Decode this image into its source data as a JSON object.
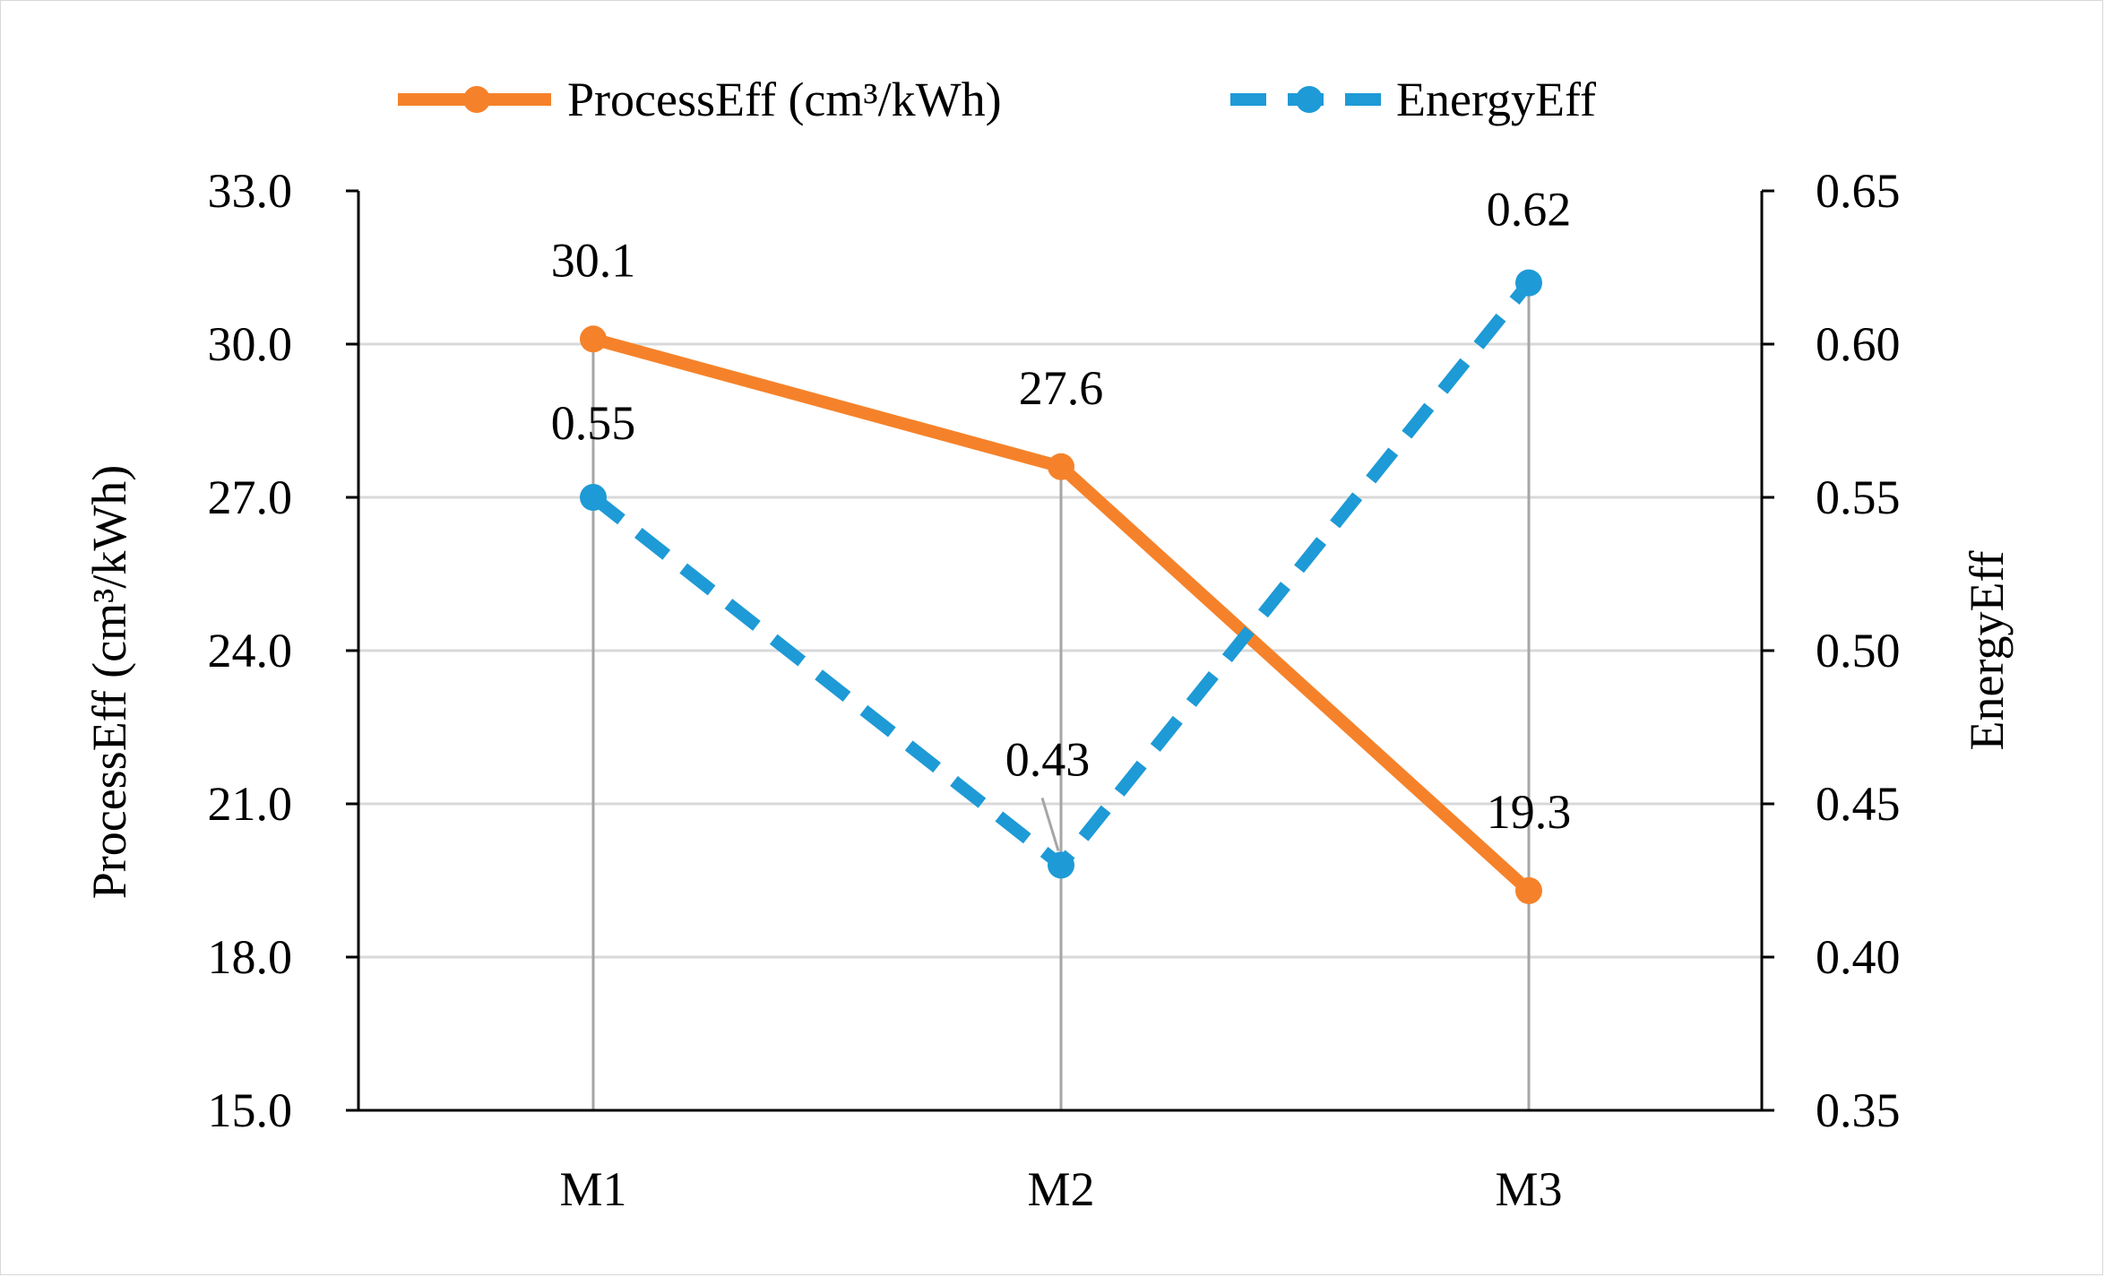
{
  "chart_data": {
    "type": "line",
    "categories": [
      "M1",
      "M2",
      "M3"
    ],
    "series": [
      {
        "name": "ProcessEff (cm³/kWh)",
        "axis": "left",
        "values": [
          30.1,
          27.6,
          19.3
        ],
        "labels": [
          "30.1",
          "27.6",
          "19.3"
        ],
        "color": "#f5822a",
        "style": "solid",
        "marker": "circle"
      },
      {
        "name": "EnergyEff",
        "axis": "right",
        "values": [
          0.55,
          0.43,
          0.62
        ],
        "labels": [
          "0.55",
          "0.43",
          "0.62"
        ],
        "color": "#1e9ad6",
        "style": "dashed",
        "marker": "circle"
      }
    ],
    "ylabel_left": "ProcessEff (cm³/kWh)",
    "ylabel_right": "EnergyEff",
    "ylim_left": [
      15,
      33
    ],
    "ylim_right": [
      0.35,
      0.65
    ],
    "yticks_left": [
      "15.0",
      "18.0",
      "21.0",
      "24.0",
      "27.0",
      "30.0",
      "33.0"
    ],
    "yticks_right": [
      "0.35",
      "0.40",
      "0.45",
      "0.50",
      "0.55",
      "0.60",
      "0.65"
    ],
    "grid": "horizontal",
    "drop_lines": true,
    "legend": "top-center",
    "gridColor": "#d9d9d9",
    "dropLineColor": "#a6a6a6",
    "axisColor": "#000000"
  }
}
